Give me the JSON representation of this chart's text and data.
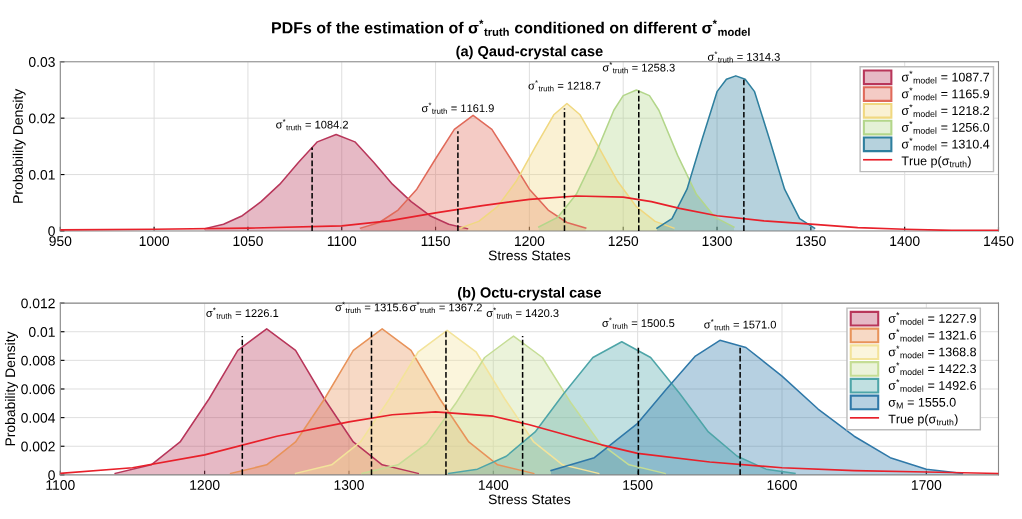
{
  "chart_data": [
    {
      "type": "area",
      "title": "PDFs of the estimation of σ$^{*}$$_{truth}$ conditioned on different σ$^{*}$$_{model}$",
      "subtitle": "(a) Qaud-crystal case",
      "xlabel": "Stress States",
      "ylabel": "Probability Density",
      "xlim": [
        950,
        1450
      ],
      "xticks": [
        950,
        1000,
        1050,
        1100,
        1150,
        1200,
        1250,
        1300,
        1350,
        1400,
        1450
      ],
      "ylim": [
        0,
        0.03
      ],
      "yticks": [
        0,
        0.01,
        0.02,
        0.03
      ],
      "grid": true,
      "legend": "top right",
      "series": [
        {
          "name": "σ$^{*}$$_{model}$ = 1087.7",
          "color": "#b8365a",
          "x": [
            1027,
            1037,
            1047,
            1057,
            1067,
            1077,
            1087,
            1097,
            1107,
            1117,
            1127,
            1137,
            1147,
            1157,
            1167
          ],
          "values": [
            0.0004,
            0.0012,
            0.0027,
            0.0052,
            0.0083,
            0.0122,
            0.0158,
            0.0171,
            0.0158,
            0.0122,
            0.0083,
            0.0052,
            0.0027,
            0.0012,
            0.0004
          ]
        },
        {
          "name": "σ$^{*}$$_{model}$ = 1165.9",
          "color": "#e06a5a",
          "x": [
            1110,
            1120,
            1130,
            1140,
            1150,
            1160,
            1170,
            1180,
            1190,
            1200,
            1210,
            1220,
            1230
          ],
          "values": [
            0.0005,
            0.0015,
            0.0037,
            0.0074,
            0.0128,
            0.018,
            0.0205,
            0.018,
            0.0128,
            0.0074,
            0.0037,
            0.0015,
            0.0005
          ]
        },
        {
          "name": "σ$^{*}$$_{model}$ = 1218.2",
          "color": "#f0d880",
          "x": [
            1163,
            1173,
            1183,
            1193,
            1203,
            1213,
            1220,
            1227,
            1237,
            1247,
            1257,
            1267,
            1277
          ],
          "values": [
            0.0005,
            0.0017,
            0.0043,
            0.0088,
            0.0148,
            0.0206,
            0.0226,
            0.0206,
            0.0148,
            0.0088,
            0.0043,
            0.0017,
            0.0005
          ]
        },
        {
          "name": "σ$^{*}$$_{model}$ = 1256.0",
          "color": "#b3d68a",
          "x": [
            1205,
            1215,
            1225,
            1235,
            1245,
            1250,
            1257,
            1264,
            1269,
            1279,
            1289,
            1299,
            1309
          ],
          "values": [
            0.0007,
            0.0024,
            0.0065,
            0.0134,
            0.0214,
            0.024,
            0.025,
            0.024,
            0.0214,
            0.0134,
            0.0065,
            0.0024,
            0.0007
          ]
        },
        {
          "name": "σ$^{*}$$_{model}$ = 1310.4",
          "color": "#2e7f9e",
          "x": [
            1268,
            1276,
            1284,
            1292,
            1300,
            1305,
            1310,
            1315,
            1320,
            1328,
            1336,
            1344,
            1352
          ],
          "values": [
            0.0005,
            0.0022,
            0.0074,
            0.0162,
            0.0247,
            0.0269,
            0.0275,
            0.0269,
            0.0247,
            0.0162,
            0.0074,
            0.0022,
            0.0005
          ]
        },
        {
          "name": "True p(σ$_{truth}$)",
          "type": "line",
          "color": "#e8202a",
          "x": [
            950,
            1000,
            1050,
            1100,
            1125,
            1150,
            1175,
            1200,
            1225,
            1250,
            1265,
            1280,
            1300,
            1325,
            1350,
            1375,
            1400,
            1425,
            1450
          ],
          "values": [
            0.0002,
            0.0003,
            0.0005,
            0.0009,
            0.0018,
            0.0032,
            0.0045,
            0.0056,
            0.0062,
            0.006,
            0.0052,
            0.004,
            0.0027,
            0.0018,
            0.0012,
            0.0006,
            0.0003,
            0.0001,
            0.0001
          ]
        },
        {
          "type": "line",
          "line_style": "dashed",
          "color": "#000000",
          "x": [
            1084.2,
            1084.2
          ],
          "values": [
            0,
            0.0148
          ]
        },
        {
          "type": "line",
          "line_style": "dashed",
          "color": "#000000",
          "x": [
            1161.9,
            1161.9
          ],
          "values": [
            0,
            0.0177
          ]
        },
        {
          "type": "line",
          "line_style": "dashed",
          "color": "#000000",
          "x": [
            1218.7,
            1218.7
          ],
          "values": [
            0,
            0.0217
          ]
        },
        {
          "type": "line",
          "line_style": "dashed",
          "color": "#000000",
          "x": [
            1258.3,
            1258.3
          ],
          "values": [
            0,
            0.0249
          ]
        },
        {
          "type": "line",
          "line_style": "dashed",
          "color": "#000000",
          "x": [
            1314.3,
            1314.3
          ],
          "values": [
            0,
            0.0268
          ]
        }
      ],
      "annotations": [
        {
          "text": "σ$^{*}$$_{truth}$ = 1084.2",
          "x": 1084.2,
          "y": 0.0148
        },
        {
          "text": "σ$^{*}$$_{truth}$ = 1161.9",
          "x": 1161.9,
          "y": 0.0177
        },
        {
          "text": "σ$^{*}$$_{truth}$ = 1218.7",
          "x": 1218.7,
          "y": 0.0217
        },
        {
          "text": "σ$^{*}$$_{truth}$ = 1258.3",
          "x": 1258.3,
          "y": 0.0249
        },
        {
          "text": "σ$^{*}$$_{truth}$ = 1314.3",
          "x": 1314.3,
          "y": 0.0268
        }
      ]
    },
    {
      "type": "area",
      "subtitle": "(b) Octu-crystal case",
      "xlabel": "Stress States",
      "ylabel": "Probability Density",
      "xlim": [
        1100,
        1750
      ],
      "xticks": [
        1100,
        1200,
        1300,
        1400,
        1500,
        1600,
        1700
      ],
      "ylim": [
        0,
        0.012
      ],
      "yticks": [
        0,
        0.002,
        0.004,
        0.006,
        0.008,
        0.01,
        0.012
      ],
      "grid": true,
      "legend": "top right",
      "series": [
        {
          "name": "σ$^{*}$$_{model}$ = 1227.9",
          "color": "#b8365a",
          "x": [
            1138,
            1163,
            1183,
            1203,
            1223,
            1243,
            1263,
            1283,
            1303,
            1323,
            1348
          ],
          "values": [
            0.0001,
            0.0007,
            0.0023,
            0.0053,
            0.0087,
            0.0102,
            0.0087,
            0.0053,
            0.0023,
            0.0007,
            0.0001
          ]
        },
        {
          "name": "σ$^{*}$$_{model}$ = 1321.6",
          "color": "#e8935a",
          "x": [
            1218,
            1243,
            1263,
            1283,
            1303,
            1323,
            1343,
            1363,
            1383,
            1403,
            1428
          ],
          "values": [
            0.0001,
            0.0007,
            0.0023,
            0.0053,
            0.0087,
            0.0102,
            0.0087,
            0.0053,
            0.0023,
            0.0007,
            0.0001
          ]
        },
        {
          "name": "σ$^{*}$$_{model}$ = 1368.8",
          "color": "#f3e39a",
          "x": [
            1263,
            1288,
            1308,
            1328,
            1348,
            1368,
            1388,
            1408,
            1428,
            1448,
            1473
          ],
          "values": [
            0.0001,
            0.0007,
            0.0023,
            0.0053,
            0.0086,
            0.0101,
            0.0086,
            0.0053,
            0.0023,
            0.0007,
            0.0001
          ]
        },
        {
          "name": "σ$^{*}$$_{model}$ = 1422.3",
          "color": "#c5dd95",
          "x": [
            1309,
            1334,
            1354,
            1374,
            1394,
            1414,
            1434,
            1454,
            1474,
            1494,
            1519
          ],
          "values": [
            0.0001,
            0.0007,
            0.0022,
            0.005,
            0.0082,
            0.0097,
            0.0082,
            0.005,
            0.0022,
            0.0007,
            0.0001
          ]
        },
        {
          "name": "σ$^{*}$$_{model}$ = 1492.6",
          "color": "#4ea5a8",
          "x": [
            1369,
            1389,
            1409,
            1429,
            1449,
            1469,
            1489,
            1509,
            1529,
            1549,
            1569,
            1589,
            1609
          ],
          "values": [
            0.0001,
            0.0004,
            0.0013,
            0.003,
            0.0057,
            0.0082,
            0.0093,
            0.0082,
            0.0057,
            0.003,
            0.0013,
            0.0004,
            0.0001
          ]
        },
        {
          "name": "σ$_{M}$ = 1555.0",
          "color": "#2f78a8",
          "x": [
            1440,
            1470,
            1500,
            1520,
            1540,
            1557,
            1575,
            1600,
            1625,
            1650,
            1675,
            1700,
            1725
          ],
          "values": [
            0.0003,
            0.0012,
            0.0036,
            0.006,
            0.0083,
            0.0094,
            0.0089,
            0.0069,
            0.0046,
            0.0027,
            0.0012,
            0.0004,
            0.0001
          ]
        },
        {
          "name": "True p(σ$_{truth}$)",
          "type": "line",
          "color": "#e8202a",
          "x": [
            1100,
            1150,
            1200,
            1250,
            1300,
            1330,
            1360,
            1400,
            1425,
            1450,
            1475,
            1500,
            1550,
            1600,
            1650,
            1700,
            1750
          ],
          "values": [
            0.0001,
            0.0005,
            0.0014,
            0.0027,
            0.0037,
            0.0042,
            0.0044,
            0.0041,
            0.0035,
            0.0028,
            0.0021,
            0.0015,
            0.0009,
            0.0005,
            0.0003,
            0.0002,
            0.0001
          ]
        },
        {
          "type": "line",
          "line_style": "dashed",
          "color": "#000000",
          "x": [
            1226.1,
            1226.1
          ],
          "values": [
            0,
            0.0097
          ]
        },
        {
          "type": "line",
          "line_style": "dashed",
          "color": "#000000",
          "x": [
            1315.6,
            1315.6
          ],
          "values": [
            0,
            0.0101
          ]
        },
        {
          "type": "line",
          "line_style": "dashed",
          "color": "#000000",
          "x": [
            1367.2,
            1367.2
          ],
          "values": [
            0,
            0.0101
          ]
        },
        {
          "type": "line",
          "line_style": "dashed",
          "color": "#000000",
          "x": [
            1420.3,
            1420.3
          ],
          "values": [
            0,
            0.0097
          ]
        },
        {
          "type": "line",
          "line_style": "dashed",
          "color": "#000000",
          "x": [
            1500.5,
            1500.5
          ],
          "values": [
            0,
            0.009
          ]
        },
        {
          "type": "line",
          "line_style": "dashed",
          "color": "#000000",
          "x": [
            1571.0,
            1571.0
          ],
          "values": [
            0,
            0.0089
          ]
        }
      ],
      "annotations": [
        {
          "text": "σ$^{*}$$_{truth}$ = 1226.1",
          "x": 1226.1,
          "y": 0.0097
        },
        {
          "text": "σ$^{*}$$_{truth}$ = 1315.6",
          "x": 1315.6,
          "y": 0.0101
        },
        {
          "text": "σ$^{*}$$_{truth}$ = 1367.2",
          "x": 1367.2,
          "y": 0.0101
        },
        {
          "text": "σ$^{*}$$_{truth}$ = 1420.3",
          "x": 1420.3,
          "y": 0.0097
        },
        {
          "text": "σ$^{*}$$_{truth}$ = 1500.5",
          "x": 1500.5,
          "y": 0.009
        },
        {
          "text": "σ$^{*}$$_{truth}$ = 1571.0",
          "x": 1571.0,
          "y": 0.0089
        }
      ]
    }
  ]
}
